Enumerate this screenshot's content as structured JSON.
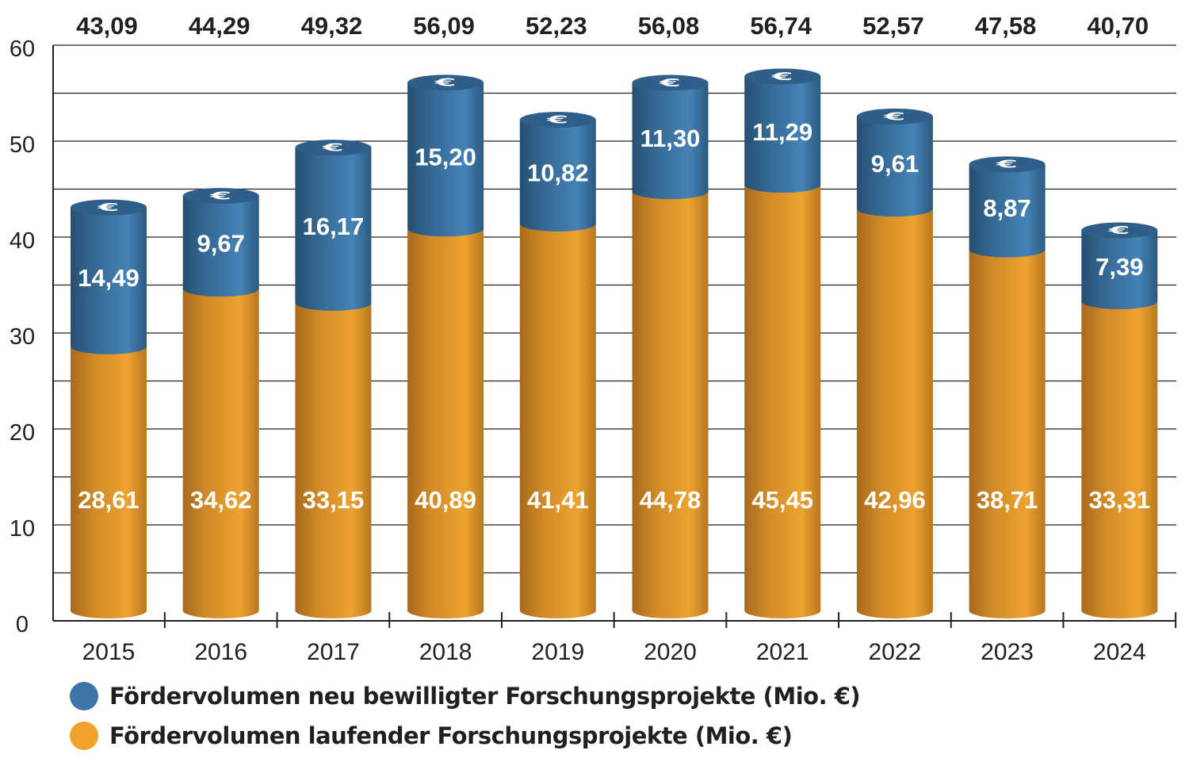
{
  "chart_data": {
    "type": "bar",
    "stacked": true,
    "categories": [
      "2015",
      "2016",
      "2017",
      "2018",
      "2019",
      "2020",
      "2021",
      "2022",
      "2023",
      "2024"
    ],
    "series": [
      {
        "name": "Fördervolumen laufender Forschungsprojekte (Mio. €)",
        "color": "#e39a2a",
        "values": [
          28.61,
          34.62,
          33.15,
          40.89,
          41.41,
          44.78,
          45.45,
          42.96,
          38.71,
          33.31
        ],
        "labels": [
          "28,61",
          "34,62",
          "33,15",
          "40,89",
          "41,41",
          "44,78",
          "45,45",
          "42,96",
          "38,71",
          "33,31"
        ]
      },
      {
        "name": "Fördervolumen neu bewilligter Forschungsprojekte (Mio. €)",
        "color": "#3d75a6",
        "values": [
          14.49,
          9.67,
          16.17,
          15.2,
          10.82,
          11.3,
          11.29,
          9.61,
          8.87,
          7.39
        ],
        "labels": [
          "14,49",
          "9,67",
          "16,17",
          "15,20",
          "10,82",
          "11,30",
          "11,29",
          "9,61",
          "8,87",
          "7,39"
        ]
      }
    ],
    "totals": [
      43.09,
      44.29,
      49.32,
      56.09,
      52.23,
      56.08,
      56.74,
      52.57,
      47.58,
      40.7
    ],
    "total_labels": [
      "43,09",
      "44,29",
      "49,32",
      "56,09",
      "52,23",
      "56,08",
      "56,74",
      "52,57",
      "47,58",
      "40,70"
    ],
    "yticks": [
      0,
      10,
      20,
      30,
      40,
      50,
      60
    ],
    "ylim": [
      0,
      60
    ],
    "grid_step": 5,
    "grid": true,
    "legend_position": "bottom-left",
    "title": "",
    "xlabel": "",
    "ylabel": ""
  },
  "legend": {
    "new": "Fördervolumen neu bewilligter Forschungsprojekte (Mio. €)",
    "running": "Fördervolumen laufender Forschungsprojekte (Mio. €)"
  }
}
